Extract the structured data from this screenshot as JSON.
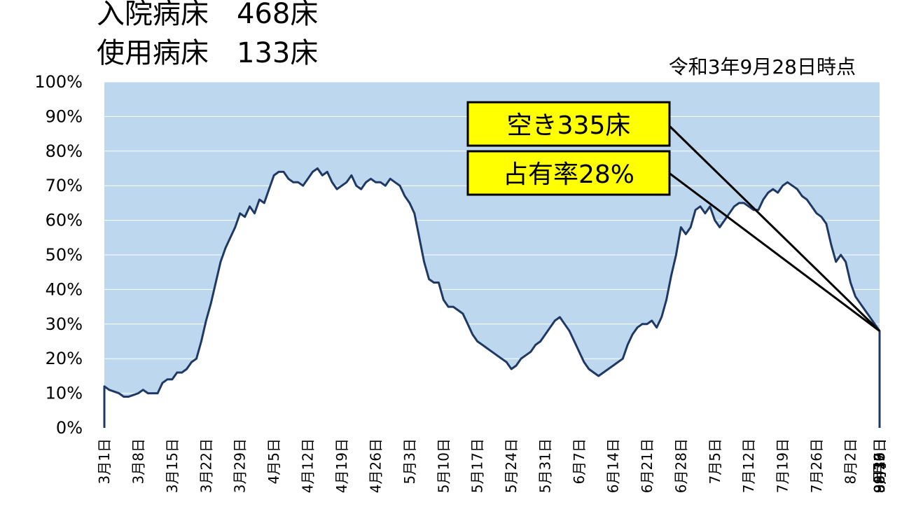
{
  "header": {
    "total_label": "入院病床",
    "total_value": "468床",
    "used_label": "使用病床",
    "used_value": "133床",
    "as_of": "令和3年9月28日時点"
  },
  "callouts": {
    "vacant": "空き335床",
    "occupancy": "占有率28%"
  },
  "colors": {
    "area": "#bdd7ee",
    "line": "#1f3864",
    "callout_bg": "#ffff00"
  },
  "chart_data": {
    "type": "area",
    "ylim": [
      0,
      100
    ],
    "y_ticks": [
      "0%",
      "10%",
      "20%",
      "30%",
      "40%",
      "50%",
      "60%",
      "70%",
      "80%",
      "90%",
      "100%"
    ],
    "x_ticks": [
      "3月1日",
      "3月8日",
      "3月15日",
      "3月22日",
      "3月29日",
      "4月5日",
      "4月12日",
      "4月19日",
      "4月26日",
      "5月3日",
      "5月10日",
      "5月17日",
      "5月24日",
      "5月31日",
      "6月7日",
      "6月14日",
      "6月21日",
      "6月28日",
      "7月5日",
      "7月12日",
      "7月19日",
      "7月26日",
      "8月2日",
      "8月9日",
      "8月16日",
      "8月23日",
      "8月30日",
      "9月6日",
      "9月13日",
      "9月20日",
      "9月27日"
    ],
    "x_start": "3月1日",
    "x_end": "9月28日",
    "series": [
      {
        "values": [
          12,
          11,
          10.5,
          10,
          9,
          9,
          9.5,
          10,
          11,
          10,
          10,
          10,
          13,
          14,
          14,
          16,
          16,
          17,
          19,
          20,
          25,
          31,
          36,
          42,
          48,
          52,
          55,
          58,
          62,
          61,
          64,
          62,
          66,
          65,
          69,
          73,
          74,
          74,
          72,
          71,
          71,
          70,
          72,
          74,
          75,
          73,
          74,
          71,
          69,
          70,
          71,
          73,
          70,
          69,
          71,
          72,
          71,
          71,
          70,
          72,
          71,
          70,
          67,
          65,
          62,
          55,
          48,
          43,
          42,
          42,
          37,
          35,
          35,
          34,
          33,
          30,
          27,
          25,
          24,
          23,
          22,
          21,
          20,
          19,
          17,
          18,
          20,
          21,
          22,
          24,
          25,
          27,
          29,
          31,
          32,
          30,
          28,
          25,
          22,
          19,
          17,
          16,
          15,
          16,
          17,
          18,
          19,
          20,
          24,
          27,
          29,
          30,
          30,
          31,
          29,
          32,
          37,
          44,
          50,
          58,
          56,
          58,
          63,
          64,
          62,
          64,
          60,
          58,
          60,
          62,
          64,
          65,
          65,
          64,
          63,
          63,
          66,
          68,
          69,
          68,
          70,
          71,
          70,
          69,
          67,
          66,
          64,
          62,
          61,
          59,
          53,
          48,
          50,
          48,
          42,
          38,
          36,
          34,
          32,
          30,
          28
        ]
      }
    ]
  }
}
